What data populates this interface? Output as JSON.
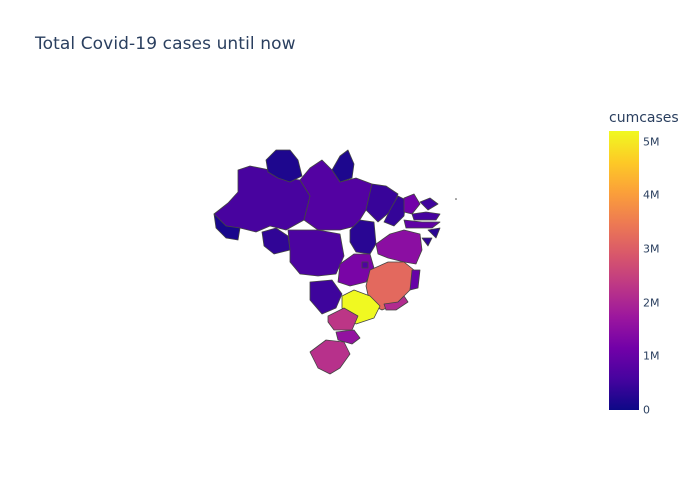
{
  "title": "Total Covid-19 cases until now",
  "colorbar": {
    "title": "cumcases",
    "min": 0,
    "max": 5200000,
    "ticks": [
      {
        "label": "0",
        "value": 0
      },
      {
        "label": "1M",
        "value": 1000000
      },
      {
        "label": "2M",
        "value": 2000000
      },
      {
        "label": "3M",
        "value": 3000000
      },
      {
        "label": "4M",
        "value": 4000000
      },
      {
        "label": "5M",
        "value": 5000000
      }
    ],
    "colorscale": [
      "#0d0887",
      "#46039f",
      "#7201a8",
      "#9c179e",
      "#bd3786",
      "#d8576b",
      "#ed7953",
      "#fb9f3a",
      "#fdca26",
      "#f0f921"
    ]
  },
  "chart_data": {
    "type": "choropleth",
    "title": "Total Covid-19 cases until now",
    "color_label": "cumcases",
    "locations": [
      {
        "region": "AM",
        "cumcases": 600000
      },
      {
        "region": "RR",
        "cumcases": 170000
      },
      {
        "region": "AP",
        "cumcases": 160000
      },
      {
        "region": "PA",
        "cumcases": 750000
      },
      {
        "region": "AC",
        "cumcases": 110000
      },
      {
        "region": "RO",
        "cumcases": 350000
      },
      {
        "region": "MT",
        "cumcases": 650000
      },
      {
        "region": "TO",
        "cumcases": 280000
      },
      {
        "region": "MA",
        "cumcases": 440000
      },
      {
        "region": "PI",
        "cumcases": 400000
      },
      {
        "region": "CE",
        "cumcases": 1150000
      },
      {
        "region": "RN",
        "cumcases": 500000
      },
      {
        "region": "PB",
        "cumcases": 580000
      },
      {
        "region": "PE",
        "cumcases": 900000
      },
      {
        "region": "AL",
        "cumcases": 290000
      },
      {
        "region": "SE",
        "cumcases": 340000
      },
      {
        "region": "BA",
        "cumcases": 1500000
      },
      {
        "region": "GO",
        "cumcases": 1250000
      },
      {
        "region": "DF",
        "cumcases": 700000
      },
      {
        "region": "MS",
        "cumcases": 500000
      },
      {
        "region": "MG",
        "cumcases": 3200000
      },
      {
        "region": "ES",
        "cumcases": 1000000
      },
      {
        "region": "RJ",
        "cumcases": 2100000
      },
      {
        "region": "SP",
        "cumcases": 5200000
      },
      {
        "region": "PR",
        "cumcases": 2300000
      },
      {
        "region": "SC",
        "cumcases": 1600000
      },
      {
        "region": "RS",
        "cumcases": 2200000
      }
    ]
  }
}
